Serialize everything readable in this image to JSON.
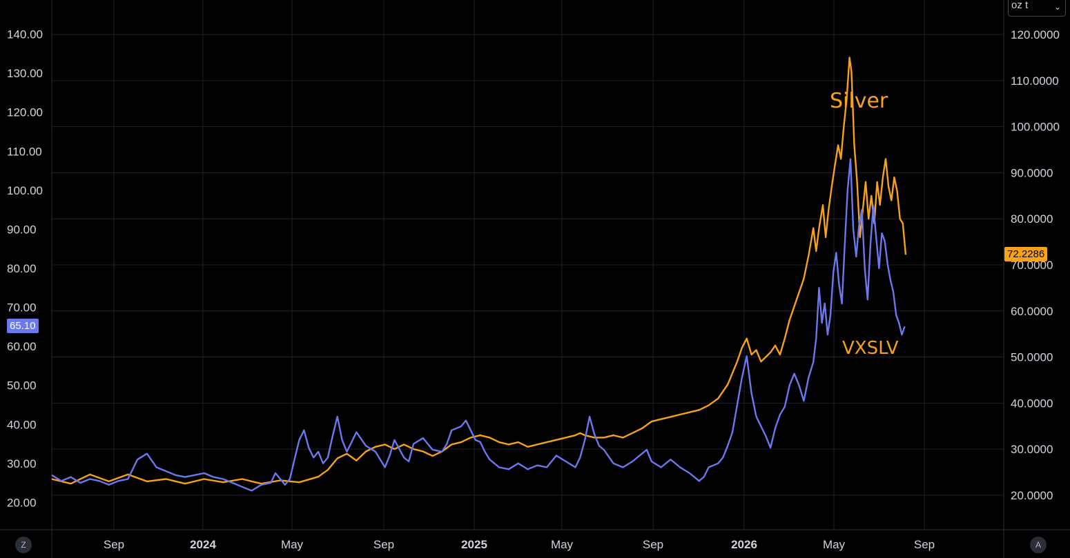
{
  "unit_selector": {
    "value": "oz t",
    "chevron_icon": "chevron-down-icon"
  },
  "corner_buttons": {
    "left": "Z",
    "right": "A"
  },
  "colors": {
    "silver": "#f7a21b",
    "vxslv": "#6b78ee",
    "background": "#000000",
    "grid": "#1e222d"
  },
  "chart_data": {
    "type": "line",
    "x_ticks": [
      "Sep",
      "2024",
      "May",
      "Sep",
      "2025",
      "May",
      "Sep",
      "2026",
      "May",
      "Sep"
    ],
    "x_ticks_bold": [
      "2024",
      "2025",
      "2026"
    ],
    "left_axis": {
      "ticks": [
        "140.00",
        "130.00",
        "120.00",
        "110.00",
        "100.00",
        "90.00",
        "80.00",
        "70.00",
        "60.00",
        "50.00",
        "40.00",
        "30.00",
        "20.00"
      ],
      "range": [
        13,
        147
      ],
      "last_value_label": "65.10"
    },
    "right_axis": {
      "ticks": [
        "120.0000",
        "110.0000",
        "100.0000",
        "90.0000",
        "80.0000",
        "70.0000",
        "60.0000",
        "50.0000",
        "40.0000",
        "30.0000",
        "20.0000"
      ],
      "range": [
        12.5,
        126
      ],
      "last_value_label": "72.2286"
    },
    "annotations": [
      {
        "text": "Silver",
        "color": "#f7a21b"
      },
      {
        "text": "VXSLV",
        "color": "#f7a21b"
      }
    ],
    "series": [
      {
        "name": "Silver",
        "axis": "right",
        "color": "#f7a21b",
        "points": [
          [
            0.0,
            23.5
          ],
          [
            0.02,
            22.5
          ],
          [
            0.04,
            24.5
          ],
          [
            0.06,
            23.0
          ],
          [
            0.08,
            24.5
          ],
          [
            0.1,
            23.0
          ],
          [
            0.12,
            23.5
          ],
          [
            0.14,
            22.5
          ],
          [
            0.16,
            23.5
          ],
          [
            0.18,
            22.8
          ],
          [
            0.2,
            23.5
          ],
          [
            0.22,
            22.5
          ],
          [
            0.24,
            23.2
          ],
          [
            0.26,
            22.8
          ],
          [
            0.28,
            24.0
          ],
          [
            0.29,
            25.5
          ],
          [
            0.3,
            28.0
          ],
          [
            0.31,
            29.0
          ],
          [
            0.32,
            27.5
          ],
          [
            0.33,
            29.5
          ],
          [
            0.34,
            30.5
          ],
          [
            0.35,
            31.0
          ],
          [
            0.36,
            30.0
          ],
          [
            0.37,
            31.0
          ],
          [
            0.38,
            30.0
          ],
          [
            0.39,
            29.5
          ],
          [
            0.4,
            28.5
          ],
          [
            0.41,
            29.5
          ],
          [
            0.42,
            31.0
          ],
          [
            0.43,
            31.5
          ],
          [
            0.44,
            32.5
          ],
          [
            0.45,
            33.0
          ],
          [
            0.46,
            32.5
          ],
          [
            0.47,
            31.5
          ],
          [
            0.48,
            31.0
          ],
          [
            0.49,
            31.5
          ],
          [
            0.5,
            30.5
          ],
          [
            0.51,
            31.0
          ],
          [
            0.52,
            31.5
          ],
          [
            0.53,
            32.0
          ],
          [
            0.54,
            32.5
          ],
          [
            0.55,
            33.0
          ],
          [
            0.555,
            33.5
          ],
          [
            0.56,
            33.0
          ],
          [
            0.57,
            32.5
          ],
          [
            0.58,
            32.5
          ],
          [
            0.59,
            33.0
          ],
          [
            0.6,
            32.5
          ],
          [
            0.61,
            33.5
          ],
          [
            0.62,
            34.5
          ],
          [
            0.63,
            36.0
          ],
          [
            0.64,
            36.5
          ],
          [
            0.65,
            37.0
          ],
          [
            0.66,
            37.5
          ],
          [
            0.67,
            38.0
          ],
          [
            0.68,
            38.5
          ],
          [
            0.69,
            39.5
          ],
          [
            0.7,
            41.0
          ],
          [
            0.705,
            42.5
          ],
          [
            0.71,
            44.0
          ],
          [
            0.715,
            46.5
          ],
          [
            0.72,
            49.0
          ],
          [
            0.725,
            52.0
          ],
          [
            0.73,
            54.0
          ],
          [
            0.735,
            50.5
          ],
          [
            0.74,
            51.5
          ],
          [
            0.745,
            49.0
          ],
          [
            0.75,
            50.0
          ],
          [
            0.755,
            51.0
          ],
          [
            0.76,
            52.5
          ],
          [
            0.765,
            50.5
          ],
          [
            0.77,
            54.0
          ],
          [
            0.775,
            58.0
          ],
          [
            0.78,
            61.0
          ],
          [
            0.785,
            64.0
          ],
          [
            0.79,
            67.0
          ],
          [
            0.795,
            72.0
          ],
          [
            0.8,
            78.0
          ],
          [
            0.803,
            73.0
          ],
          [
            0.806,
            78.0
          ],
          [
            0.81,
            83.0
          ],
          [
            0.813,
            76.0
          ],
          [
            0.816,
            82.0
          ],
          [
            0.82,
            88.0
          ],
          [
            0.823,
            92.0
          ],
          [
            0.826,
            96.0
          ],
          [
            0.829,
            93.0
          ],
          [
            0.832,
            100.0
          ],
          [
            0.835,
            106.0
          ],
          [
            0.838,
            115.0
          ],
          [
            0.84,
            112.0
          ],
          [
            0.843,
            96.0
          ],
          [
            0.846,
            88.0
          ],
          [
            0.849,
            76.0
          ],
          [
            0.852,
            82.0
          ],
          [
            0.855,
            88.0
          ],
          [
            0.858,
            80.0
          ],
          [
            0.861,
            85.0
          ],
          [
            0.864,
            79.0
          ],
          [
            0.867,
            88.0
          ],
          [
            0.87,
            83.0
          ],
          [
            0.873,
            89.0
          ],
          [
            0.876,
            93.0
          ],
          [
            0.879,
            87.0
          ],
          [
            0.882,
            84.0
          ],
          [
            0.885,
            89.0
          ],
          [
            0.888,
            86.0
          ],
          [
            0.891,
            80.0
          ],
          [
            0.894,
            79.0
          ],
          [
            0.897,
            72.2
          ]
        ]
      },
      {
        "name": "VXSLV",
        "axis": "left",
        "color": "#6b78ee",
        "points": [
          [
            0.0,
            27.0
          ],
          [
            0.01,
            25.5
          ],
          [
            0.02,
            26.5
          ],
          [
            0.03,
            25.0
          ],
          [
            0.04,
            26.0
          ],
          [
            0.05,
            25.5
          ],
          [
            0.06,
            24.5
          ],
          [
            0.07,
            25.5
          ],
          [
            0.08,
            26.0
          ],
          [
            0.09,
            31.0
          ],
          [
            0.1,
            32.5
          ],
          [
            0.11,
            29.0
          ],
          [
            0.12,
            28.0
          ],
          [
            0.13,
            27.0
          ],
          [
            0.14,
            26.5
          ],
          [
            0.15,
            27.0
          ],
          [
            0.16,
            27.5
          ],
          [
            0.17,
            26.5
          ],
          [
            0.18,
            26.0
          ],
          [
            0.19,
            25.0
          ],
          [
            0.2,
            24.0
          ],
          [
            0.21,
            23.0
          ],
          [
            0.22,
            24.5
          ],
          [
            0.23,
            25.0
          ],
          [
            0.235,
            27.5
          ],
          [
            0.24,
            26.0
          ],
          [
            0.245,
            24.5
          ],
          [
            0.25,
            26.0
          ],
          [
            0.255,
            31.0
          ],
          [
            0.26,
            36.0
          ],
          [
            0.265,
            38.5
          ],
          [
            0.27,
            34.0
          ],
          [
            0.275,
            31.5
          ],
          [
            0.28,
            33.0
          ],
          [
            0.285,
            30.0
          ],
          [
            0.29,
            31.5
          ],
          [
            0.295,
            37.0
          ],
          [
            0.3,
            42.0
          ],
          [
            0.305,
            36.0
          ],
          [
            0.31,
            33.0
          ],
          [
            0.315,
            35.5
          ],
          [
            0.32,
            38.0
          ],
          [
            0.33,
            34.5
          ],
          [
            0.34,
            33.0
          ],
          [
            0.345,
            31.0
          ],
          [
            0.35,
            29.0
          ],
          [
            0.355,
            32.0
          ],
          [
            0.36,
            36.0
          ],
          [
            0.37,
            31.5
          ],
          [
            0.375,
            30.5
          ],
          [
            0.38,
            35.0
          ],
          [
            0.39,
            36.5
          ],
          [
            0.4,
            33.5
          ],
          [
            0.41,
            33.0
          ],
          [
            0.415,
            35.0
          ],
          [
            0.42,
            38.5
          ],
          [
            0.43,
            39.5
          ],
          [
            0.435,
            41.0
          ],
          [
            0.44,
            38.5
          ],
          [
            0.445,
            36.0
          ],
          [
            0.45,
            35.5
          ],
          [
            0.455,
            33.0
          ],
          [
            0.46,
            31.0
          ],
          [
            0.47,
            29.0
          ],
          [
            0.48,
            28.5
          ],
          [
            0.49,
            30.0
          ],
          [
            0.5,
            28.5
          ],
          [
            0.51,
            29.5
          ],
          [
            0.52,
            29.0
          ],
          [
            0.53,
            32.0
          ],
          [
            0.54,
            30.5
          ],
          [
            0.55,
            29.0
          ],
          [
            0.555,
            31.5
          ],
          [
            0.56,
            36.0
          ],
          [
            0.565,
            42.0
          ],
          [
            0.57,
            37.5
          ],
          [
            0.575,
            34.5
          ],
          [
            0.58,
            33.5
          ],
          [
            0.59,
            30.0
          ],
          [
            0.6,
            29.0
          ],
          [
            0.61,
            30.5
          ],
          [
            0.62,
            32.5
          ],
          [
            0.625,
            33.5
          ],
          [
            0.63,
            30.5
          ],
          [
            0.64,
            29.0
          ],
          [
            0.65,
            31.0
          ],
          [
            0.66,
            29.0
          ],
          [
            0.67,
            27.5
          ],
          [
            0.675,
            26.5
          ],
          [
            0.68,
            25.5
          ],
          [
            0.685,
            26.5
          ],
          [
            0.69,
            29.0
          ],
          [
            0.7,
            30.0
          ],
          [
            0.705,
            31.5
          ],
          [
            0.71,
            34.5
          ],
          [
            0.715,
            38.0
          ],
          [
            0.72,
            45.0
          ],
          [
            0.725,
            52.0
          ],
          [
            0.73,
            57.5
          ],
          [
            0.735,
            48.0
          ],
          [
            0.74,
            42.0
          ],
          [
            0.745,
            39.5
          ],
          [
            0.75,
            37.0
          ],
          [
            0.755,
            34.0
          ],
          [
            0.76,
            39.0
          ],
          [
            0.765,
            42.5
          ],
          [
            0.77,
            44.5
          ],
          [
            0.775,
            50.0
          ],
          [
            0.78,
            53.0
          ],
          [
            0.785,
            50.0
          ],
          [
            0.79,
            46.0
          ],
          [
            0.795,
            52.0
          ],
          [
            0.8,
            56.0
          ],
          [
            0.803,
            62.0
          ],
          [
            0.806,
            75.0
          ],
          [
            0.809,
            66.0
          ],
          [
            0.812,
            71.0
          ],
          [
            0.815,
            63.0
          ],
          [
            0.818,
            68.0
          ],
          [
            0.821,
            79.0
          ],
          [
            0.824,
            84.0
          ],
          [
            0.827,
            76.0
          ],
          [
            0.83,
            71.0
          ],
          [
            0.833,
            86.0
          ],
          [
            0.836,
            100.0
          ],
          [
            0.839,
            108.0
          ],
          [
            0.842,
            90.0
          ],
          [
            0.845,
            83.0
          ],
          [
            0.848,
            91.0
          ],
          [
            0.851,
            95.0
          ],
          [
            0.854,
            80.0
          ],
          [
            0.857,
            72.0
          ],
          [
            0.86,
            86.0
          ],
          [
            0.863,
            96.0
          ],
          [
            0.866,
            88.0
          ],
          [
            0.869,
            80.0
          ],
          [
            0.872,
            89.0
          ],
          [
            0.875,
            87.0
          ],
          [
            0.878,
            81.0
          ],
          [
            0.881,
            77.0
          ],
          [
            0.884,
            74.0
          ],
          [
            0.887,
            68.0
          ],
          [
            0.89,
            66.0
          ],
          [
            0.893,
            63.0
          ],
          [
            0.896,
            65.1
          ]
        ]
      }
    ]
  }
}
